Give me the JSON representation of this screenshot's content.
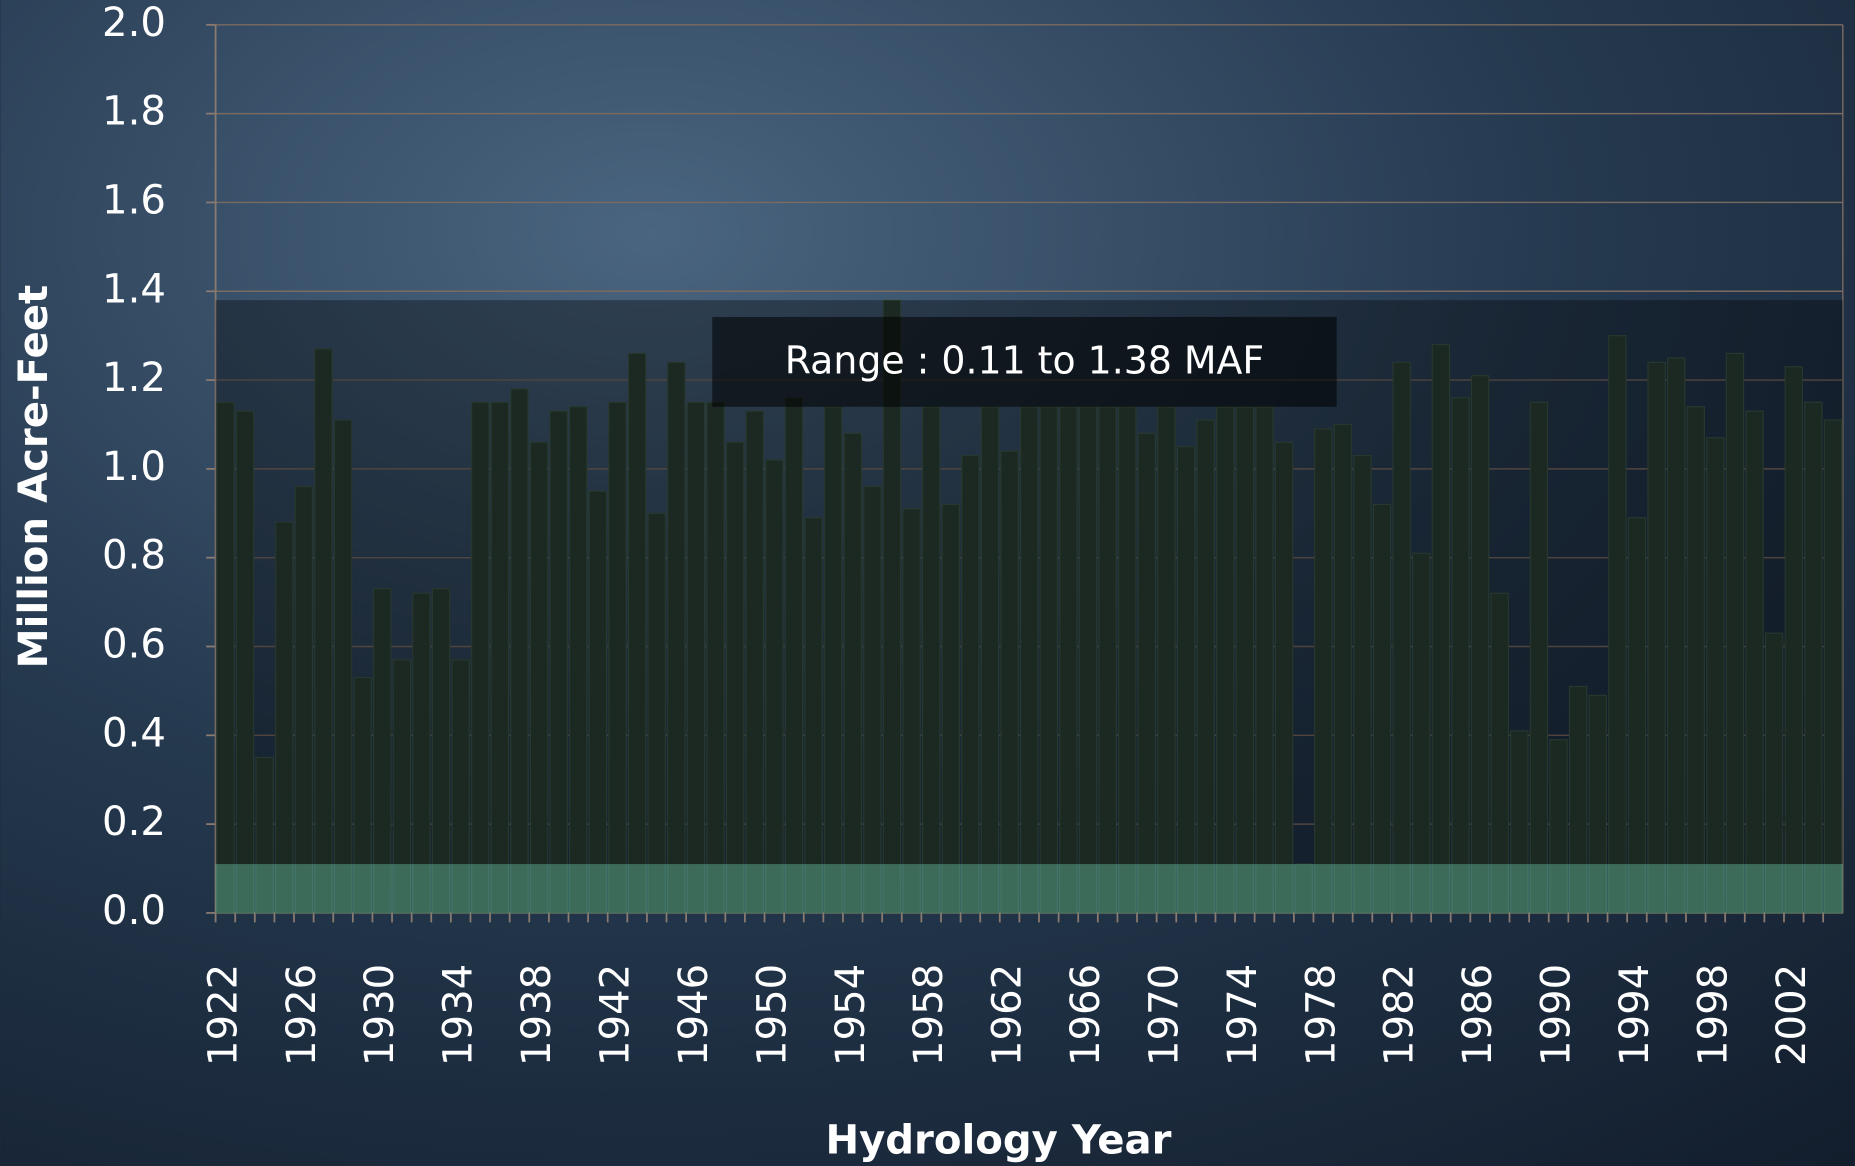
{
  "chart_data": {
    "type": "bar",
    "y_axis_label": "Million Acre-Feet",
    "x_axis_label": "Hydrology Year",
    "annotation": "Range : 0.11 to 1.38 MAF",
    "color": "#2b3f35",
    "grid": true,
    "ylim": [
      0,
      2.0
    ],
    "yticks": [
      {
        "value": 0,
        "label": "0.0"
      },
      0.2,
      0.4,
      0.6,
      0.8,
      {
        "value": 1,
        "label": "1.0"
      },
      1.2,
      1.4,
      1.6,
      1.8,
      {
        "value": 2,
        "label": "2.0"
      }
    ],
    "categories": [
      "1922",
      null,
      null,
      null,
      "1926",
      null,
      null,
      null,
      "1930",
      null,
      null,
      null,
      "1934",
      null,
      null,
      null,
      "1938",
      null,
      null,
      null,
      "1942",
      null,
      null,
      null,
      "1946",
      null,
      null,
      null,
      "1950",
      null,
      null,
      null,
      "1954",
      null,
      null,
      null,
      "1958",
      null,
      null,
      null,
      "1962",
      null,
      null,
      null,
      "1966",
      null,
      null,
      null,
      "1970",
      null,
      null,
      null,
      "1974",
      null,
      null,
      null,
      "1978",
      null,
      null,
      null,
      "1982",
      null,
      null,
      null,
      "1986",
      null,
      null,
      null,
      "1990",
      null,
      null,
      null,
      "1994",
      null,
      null,
      null,
      "1998",
      null,
      null,
      null,
      "2002",
      null,
      null
    ],
    "values": [
      1.15,
      1.13,
      0.35,
      0.88,
      0.96,
      1.27,
      1.11,
      0.53,
      0.73,
      0.57,
      0.72,
      0.73,
      0.57,
      1.15,
      1.15,
      1.18,
      1.06,
      1.13,
      1.14,
      0.95,
      1.15,
      1.26,
      0.9,
      1.24,
      1.15,
      1.15,
      1.06,
      1.13,
      1.02,
      1.16,
      0.89,
      1.14,
      1.08,
      0.96,
      1.38,
      0.91,
      1.14,
      0.92,
      1.03,
      1.14,
      1.04,
      1.14,
      1.14,
      1.14,
      1.14,
      1.14,
      1.14,
      1.08,
      1.14,
      1.05,
      1.11,
      1.14,
      1.14,
      1.14,
      1.06,
      0.11,
      1.09,
      1.1,
      1.03,
      0.92,
      1.24,
      0.81,
      1.28,
      1.16,
      1.21,
      0.72,
      0.41,
      1.15,
      0.39,
      0.51,
      0.49,
      1.3,
      0.89,
      1.24,
      1.25,
      1.14,
      1.07,
      1.26,
      1.13,
      0.63,
      1.23,
      1.15,
      1.11
    ]
  }
}
